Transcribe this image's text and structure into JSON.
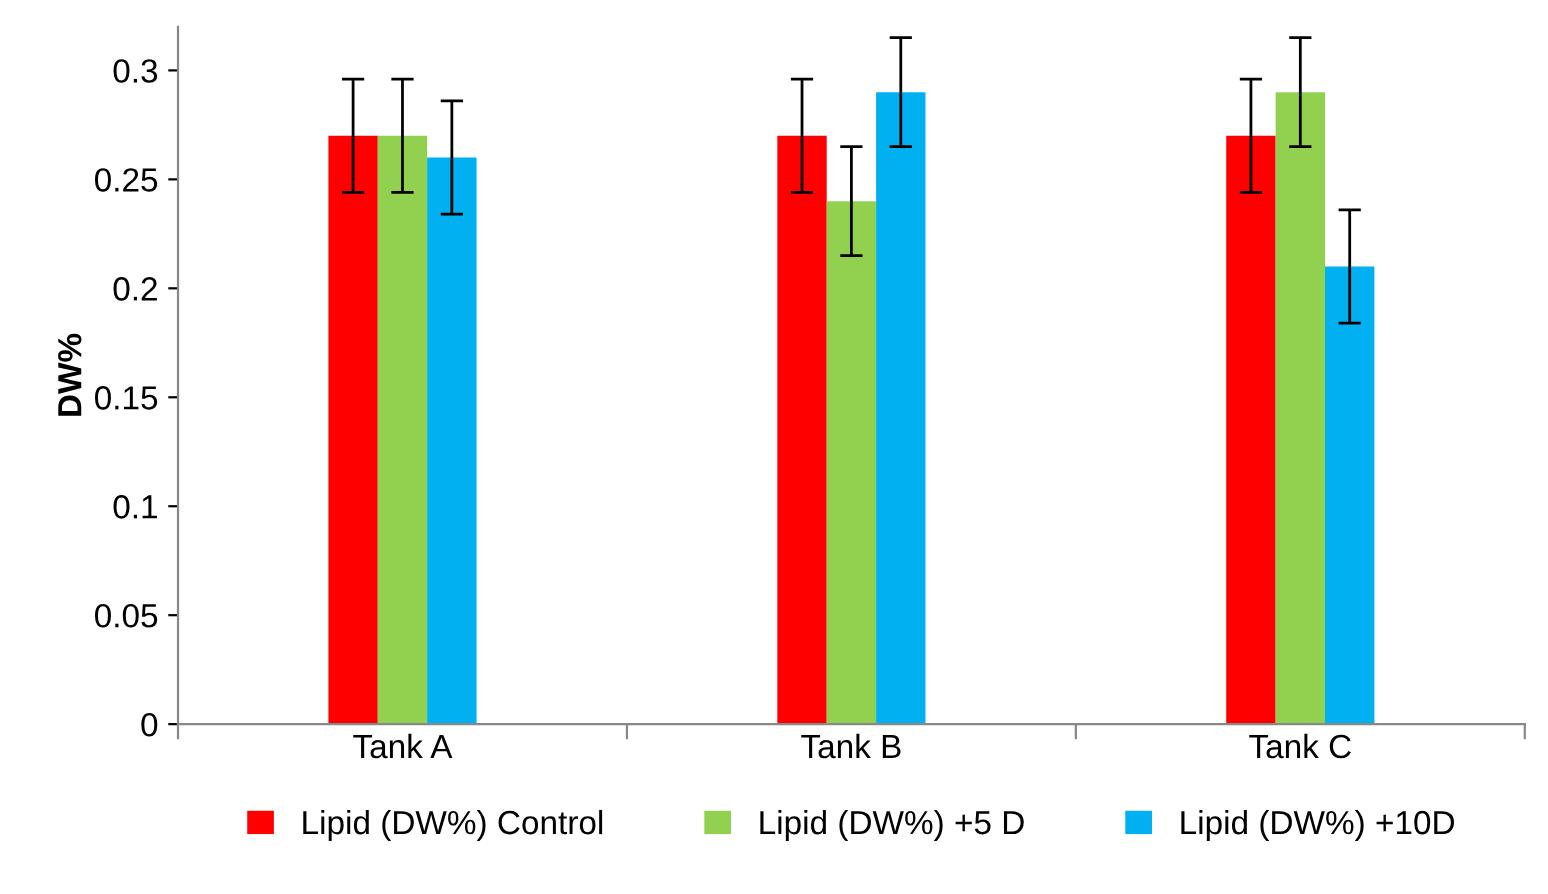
{
  "chart_data": {
    "type": "bar",
    "ylabel": "DW%",
    "categories": [
      "Tank A",
      "Tank B",
      "Tank C"
    ],
    "series": [
      {
        "name": "Lipid (DW%) Control",
        "color": "#ff0000",
        "values": [
          0.27,
          0.27,
          0.27
        ],
        "errors": [
          0.026,
          0.026,
          0.026
        ]
      },
      {
        "name": "Lipid (DW%) +5 D",
        "color": "#92d050",
        "values": [
          0.27,
          0.24,
          0.29
        ],
        "errors": [
          0.026,
          0.025,
          0.025
        ]
      },
      {
        "name": "Lipid (DW%) +10D",
        "color": "#00b0f0",
        "values": [
          0.26,
          0.29,
          0.21
        ],
        "errors": [
          0.026,
          0.025,
          0.026
        ]
      }
    ],
    "ylim": [
      0,
      0.32
    ],
    "yticks": [
      0,
      {
        "value": 0.05,
        "label": "0.05"
      },
      {
        "value": 0.1,
        "label": "0.1"
      },
      {
        "value": 0.15,
        "label": "0.15"
      },
      {
        "value": 0.2,
        "label": "0.2"
      },
      {
        "value": 0.25,
        "label": "0.25"
      },
      {
        "value": 0.3,
        "label": "0.3"
      }
    ],
    "grid": false,
    "legend": "bottom"
  }
}
